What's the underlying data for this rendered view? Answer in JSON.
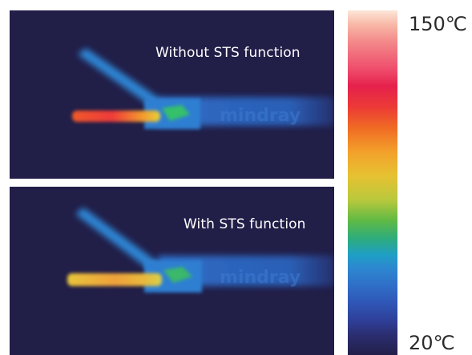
{
  "panels": [
    {
      "caption": "Without STS function",
      "logo_text": "mindray"
    },
    {
      "caption": "With STS function",
      "logo_text": "mindray"
    }
  ],
  "scale": {
    "max_label": "150℃",
    "min_label": "20℃"
  },
  "colors": {
    "background": "#211e48",
    "hot": "#f0432e",
    "warm": "#e7d23a",
    "cool": "#2f86d6",
    "instrument": "#2a66c0"
  }
}
